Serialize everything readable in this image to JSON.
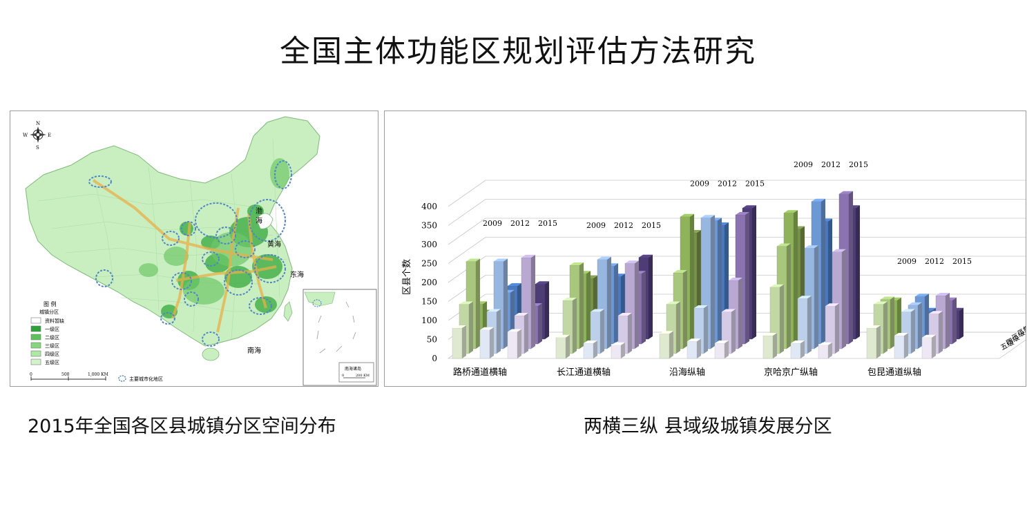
{
  "page": {
    "title": "全国主体功能区规划评估方法研究",
    "left_caption": "2015年全国各区县城镇分区空间分布",
    "right_caption": "两横三纵  县域级城镇发展分区"
  },
  "map": {
    "compass": {
      "n": "N",
      "s": "S",
      "w": "W",
      "e": "E"
    },
    "legend": {
      "title": "图 例",
      "subtitle": "城镇分区",
      "items": [
        {
          "label": "资料暂缺",
          "color": "#ffffff"
        },
        {
          "label": "一级区",
          "color": "#2ea23a"
        },
        {
          "label": "二级区",
          "color": "#5cc25a"
        },
        {
          "label": "三级区",
          "color": "#86d67e"
        },
        {
          "label": "四级区",
          "color": "#ade8a4"
        },
        {
          "label": "五级区",
          "color": "#d4f3cc"
        }
      ],
      "circle_label": "主要城市化地区"
    },
    "scale": {
      "zero": "0",
      "mid": "500",
      "end": "1,000 KM"
    },
    "inset": {
      "label": "南海诸岛",
      "scale_zero": "0",
      "scale_end": "200 KM"
    },
    "sea_labels": {
      "bohai": "渤\n海",
      "huanghai": "黄海",
      "donghai": "东海",
      "nanhai": "南海"
    },
    "colors": {
      "land": "#c9efc0",
      "urban": "#3fae45",
      "circle": "#4f86c6",
      "corridor": "#e8b04a"
    }
  },
  "chart_data": {
    "type": "bar",
    "ylabel": "区县个数",
    "ylim": [
      0,
      400
    ],
    "yticks": [
      0,
      50,
      100,
      150,
      200,
      250,
      300,
      350,
      400
    ],
    "years": [
      "2009",
      "2012",
      "2015"
    ],
    "levels": [
      "一级",
      "二级",
      "三级",
      "四级",
      "五级"
    ],
    "groups": [
      {
        "name": "路桥通道横轴",
        "values": {
          "2009": {
            "一级": 70,
            "二级": 105,
            "三级": 230,
            "四级": 130,
            "五级": 80
          },
          "2012": {
            "一级": 140,
            "二级": 135,
            "三级": 230,
            "四级": 110,
            "五级": 75
          },
          "2015": {
            "一级": 145,
            "二级": 100,
            "三级": 240,
            "四级": 100,
            "五级": 70
          }
        }
      },
      {
        "name": "长江通道横轴",
        "values": {
          "2009": {
            "一级": 160,
            "二级": 185,
            "三级": 220,
            "四级": 140,
            "五级": 55
          },
          "2012": {
            "一级": 165,
            "二级": 205,
            "三级": 235,
            "四级": 110,
            "五级": 40
          },
          "2015": {
            "一级": 215,
            "二级": 185,
            "三级": 225,
            "四级": 100,
            "五级": 35
          }
        }
      },
      {
        "name": "沿海纵轴",
        "values": {
          "2009": {
            "一级": 280,
            "二级": 335,
            "三级": 200,
            "四级": 130,
            "五级": 65
          },
          "2012": {
            "一级": 300,
            "二级": 325,
            "三级": 345,
            "四级": 120,
            "五级": 45
          },
          "2015": {
            "一级": 345,
            "二级": 340,
            "三级": 180,
            "四级": 110,
            "五级": 40
          }
        }
      },
      {
        "name": "京哈京广纵轴",
        "values": {
          "2009": {
            "一级": 290,
            "二级": 345,
            "三级": 270,
            "四级": 175,
            "五级": 60
          },
          "2012": {
            "一级": 310,
            "二级": 375,
            "三级": 265,
            "四级": 145,
            "五级": 40
          },
          "2015": {
            "一级": 345,
            "二级": 395,
            "三级": 255,
            "四级": 125,
            "五级": 35
          }
        }
      },
      {
        "name": "包昆通道纵轴",
        "values": {
          "2009": {
            "一级": 55,
            "二级": 115,
            "三级": 130,
            "四级": 130,
            "五级": 80
          },
          "2012": {
            "一级": 75,
            "二级": 125,
            "三级": 115,
            "四级": 110,
            "五级": 60
          },
          "2015": {
            "一级": 75,
            "二级": 115,
            "三级": 140,
            "四级": 105,
            "五级": 55
          }
        }
      }
    ],
    "colors": {
      "2009": {
        "一级": "#77914a",
        "二级": "#8fb35a",
        "三级": "#a9c77c",
        "四级": "#c2d8a4",
        "五级": "#dfe9cf"
      },
      "2012": {
        "一级": "#4a79c0",
        "二级": "#6d98d6",
        "三级": "#97b6e0",
        "四级": "#bcd0ec",
        "五级": "#e0e8f6"
      },
      "2015": {
        "一级": "#4e3c76",
        "二级": "#8a73b0",
        "三级": "#b9a8d2",
        "四级": "#d6cbe6",
        "五级": "#eee8f4"
      }
    }
  }
}
